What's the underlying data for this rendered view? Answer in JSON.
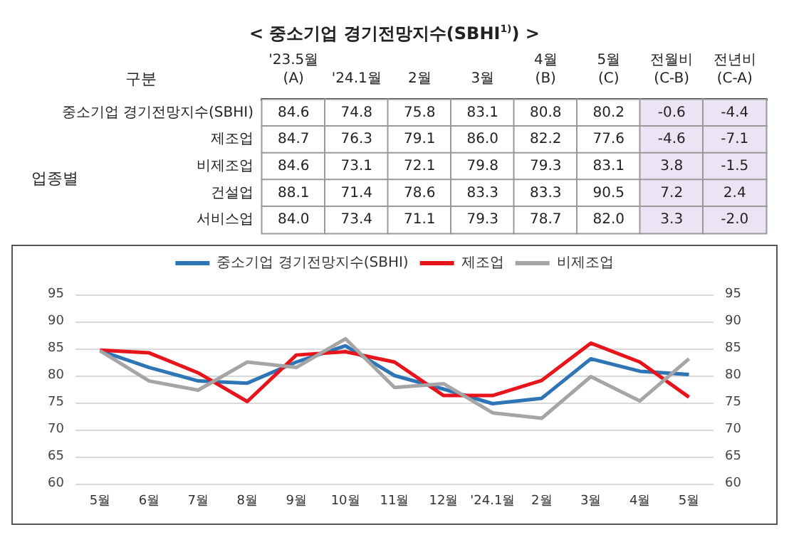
{
  "chart_data": [
    {
      "type": "heatmap",
      "title": "< 중소기업 경기전망지수(SBHI$^{1)}$) >",
      "ylabel": "구분",
      "categories": [
        "'23.5월\n(A)",
        "'24.1월",
        "2월",
        "3월",
        "4월\n(B)",
        "5월\n(C)",
        "전월비\n(C-B)",
        "전년비\n(C-A)"
      ],
      "y_categories": [
        "중소기업 경기전망지수(SBHI)",
        "제조업",
        "비제조업",
        "건설업",
        "서비스업"
      ],
      "cells": [
        [
          84.6,
          74.8,
          75.8,
          83.1,
          80.8,
          80.2,
          -0.6,
          -4.4
        ],
        [
          84.7,
          76.3,
          79.1,
          86.0,
          82.2,
          77.6,
          -4.6,
          -7.1
        ],
        [
          84.6,
          73.1,
          72.1,
          79.8,
          79.3,
          83.1,
          3.8,
          -1.5
        ],
        [
          88.1,
          71.4,
          78.6,
          83.3,
          83.3,
          90.5,
          7.2,
          2.4
        ],
        [
          84.0,
          73.4,
          71.1,
          79.3,
          78.7,
          82.0,
          3.3,
          -2.0
        ]
      ],
      "cell_labels": [
        [
          "84.6",
          "74.8",
          "75.8",
          "83.1",
          "80.8",
          "80.2",
          "-0.6",
          "-4.4"
        ],
        [
          "84.7",
          "76.3",
          "79.1",
          "86.0",
          "82.2",
          "77.6",
          "-4.6",
          "-7.1"
        ],
        [
          "84.6",
          "73.1",
          "72.1",
          "79.8",
          "79.3",
          "83.1",
          "3.8",
          "-1.5"
        ],
        [
          "88.1",
          "71.4",
          "78.6",
          "83.3",
          "83.3",
          "90.5",
          "7.2",
          "2.4"
        ],
        [
          "84.0",
          "73.4",
          "71.1",
          "79.3",
          "78.7",
          "82.0",
          "3.3",
          "-2.0"
        ]
      ],
      "data_labels": true,
      "annotations": [
        "업종별"
      ]
    },
    {
      "type": "line",
      "categories": [
        "5월",
        "6월",
        "7월",
        "8월",
        "9월",
        "10월",
        "11월",
        "12월",
        "'24.1월",
        "2월",
        "3월",
        "4월",
        "5월"
      ],
      "series": [
        {
          "name": "중소기업 경기전망지수(SBHI)",
          "color": "#2e75b6",
          "values": [
            84.6,
            81.5,
            79,
            78.6,
            82.5,
            85.5,
            80,
            77.5,
            74.8,
            75.8,
            83.1,
            80.8,
            80.2
          ]
        },
        {
          "name": "제조업",
          "color": "#e8141c",
          "values": [
            84.7,
            84.2,
            80.5,
            75.2,
            83.8,
            84.4,
            82.5,
            76.3,
            76.3,
            79.1,
            86.0,
            82.5,
            76
          ]
        },
        {
          "name": "비제조업",
          "color": "#a5a5a5",
          "values": [
            84.6,
            79,
            77.3,
            82.5,
            81.5,
            86.8,
            77.8,
            78.5,
            73.1,
            72.1,
            79.8,
            75.3,
            83.1
          ]
        }
      ],
      "ylim": [
        60,
        95
      ],
      "yticks": [
        60,
        65,
        70,
        75,
        80,
        85,
        90,
        95
      ],
      "y2lim": [
        60,
        95
      ],
      "y2ticks": [
        60,
        65,
        70,
        75,
        80,
        85,
        90,
        95
      ],
      "grid": "y",
      "legend": "top",
      "marker": "none",
      "line_style": "solid"
    }
  ]
}
